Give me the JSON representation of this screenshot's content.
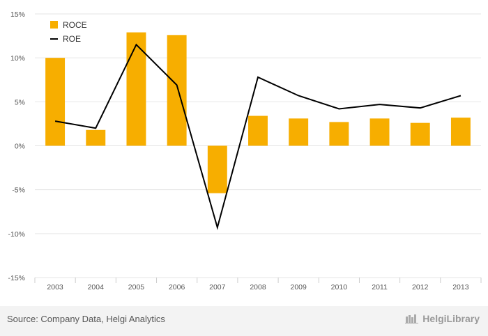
{
  "chart_data": {
    "type": "bar",
    "categories": [
      "2003",
      "2004",
      "2005",
      "2006",
      "2007",
      "2008",
      "2009",
      "2010",
      "2011",
      "2012",
      "2013"
    ],
    "series": [
      {
        "name": "ROCE",
        "kind": "bar",
        "color": "#f7ae00",
        "values": [
          10.0,
          1.8,
          12.9,
          12.6,
          -5.4,
          3.4,
          3.1,
          2.7,
          3.1,
          2.6,
          3.2
        ]
      },
      {
        "name": "ROE",
        "kind": "line",
        "color": "#000000",
        "values": [
          2.8,
          2.0,
          11.5,
          6.9,
          -9.3,
          7.8,
          5.7,
          4.2,
          4.7,
          4.3,
          5.7
        ]
      }
    ],
    "yticks": [
      "15%",
      "10%",
      "5%",
      "0%",
      "-5%",
      "-10%",
      "-15%"
    ],
    "ylim": [
      -15,
      15
    ],
    "grid": true,
    "legend": "top-left"
  },
  "footer": {
    "source": "Source: Company Data, Helgi Analytics",
    "brand": "HelgiLibrary"
  }
}
